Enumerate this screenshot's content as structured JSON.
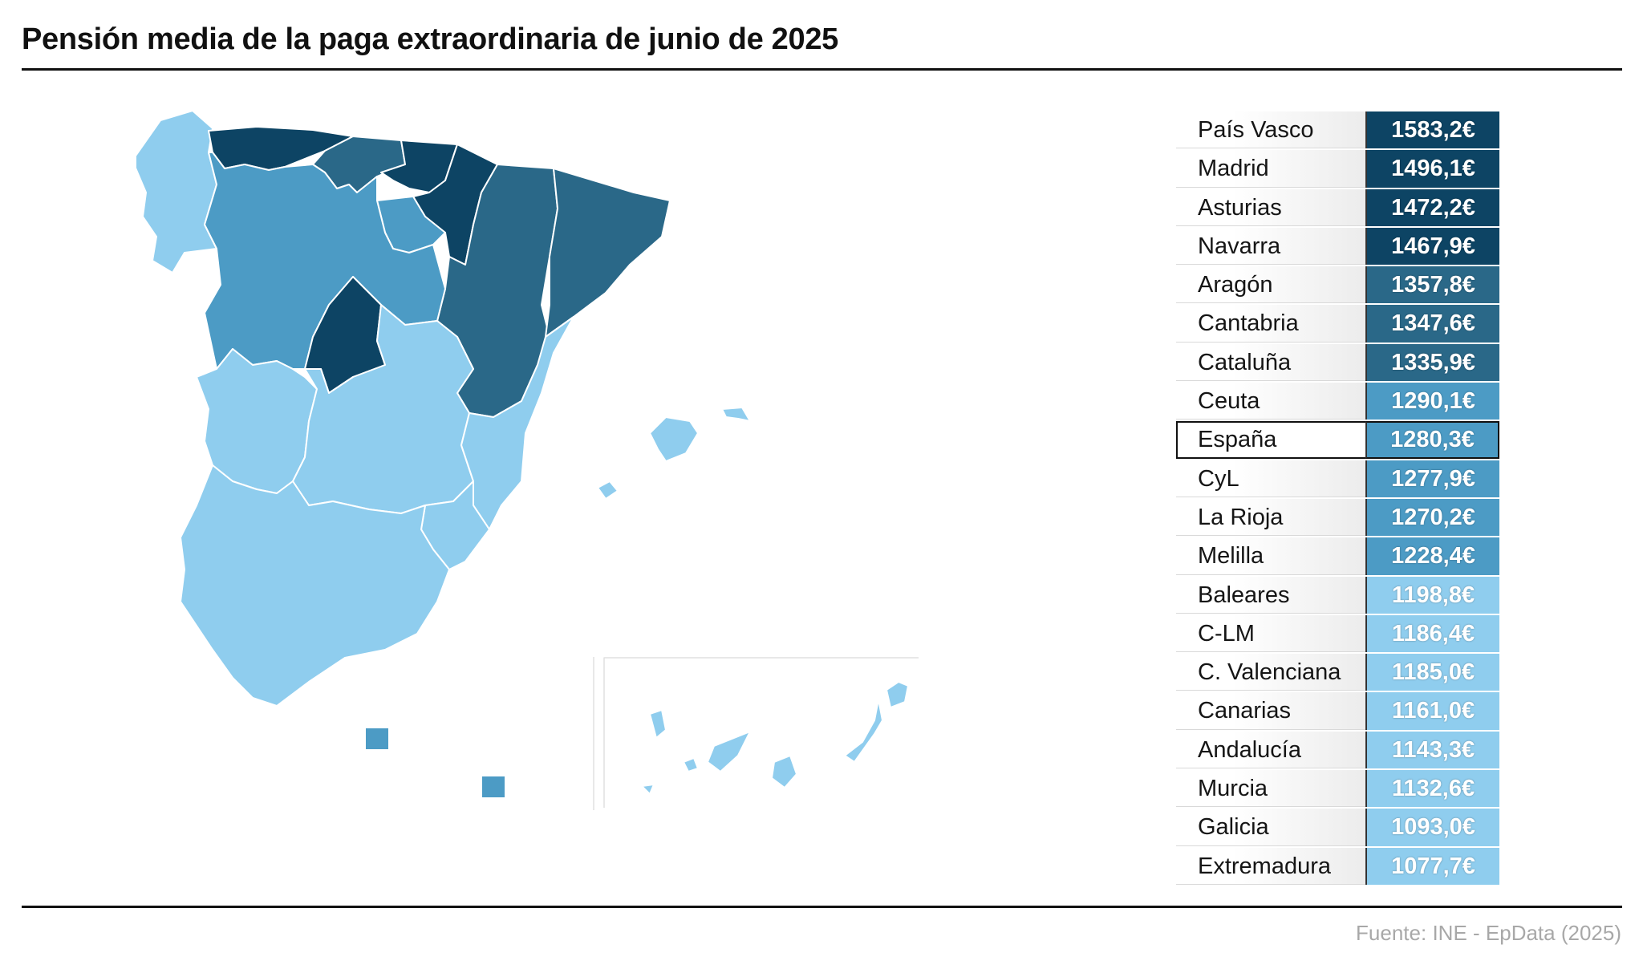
{
  "title": "Pensión media de la paga extraordinaria de junio de 2025",
  "source": "Fuente: INE - EpData (2025)",
  "colors": {
    "darkest": "#0d4464",
    "dark": "#2a6888",
    "medium": "#4c9bc5",
    "light": "#8fcdee"
  },
  "rows": [
    {
      "region": "País Vasco",
      "value": "1583,2€",
      "color": "#0d4464"
    },
    {
      "region": "Madrid",
      "value": "1496,1€",
      "color": "#0d4464"
    },
    {
      "region": "Asturias",
      "value": "1472,2€",
      "color": "#0d4464"
    },
    {
      "region": "Navarra",
      "value": "1467,9€",
      "color": "#0d4464"
    },
    {
      "region": "Aragón",
      "value": "1357,8€",
      "color": "#2a6888"
    },
    {
      "region": "Cantabria",
      "value": "1347,6€",
      "color": "#2a6888"
    },
    {
      "region": "Cataluña",
      "value": "1335,9€",
      "color": "#2a6888"
    },
    {
      "region": "Ceuta",
      "value": "1290,1€",
      "color": "#4c9bc5"
    },
    {
      "region": "España",
      "value": "1280,3€",
      "color": "#4c9bc5",
      "highlight": true
    },
    {
      "region": "CyL",
      "value": "1277,9€",
      "color": "#4c9bc5"
    },
    {
      "region": "La Rioja",
      "value": "1270,2€",
      "color": "#4c9bc5"
    },
    {
      "region": "Melilla",
      "value": "1228,4€",
      "color": "#4c9bc5"
    },
    {
      "region": "Baleares",
      "value": "1198,8€",
      "color": "#8fcdee"
    },
    {
      "region": "C-LM",
      "value": "1186,4€",
      "color": "#8fcdee"
    },
    {
      "region": "C. Valenciana",
      "value": "1185,0€",
      "color": "#8fcdee"
    },
    {
      "region": "Canarias",
      "value": "1161,0€",
      "color": "#8fcdee"
    },
    {
      "region": "Andalucía",
      "value": "1143,3€",
      "color": "#8fcdee"
    },
    {
      "region": "Murcia",
      "value": "1132,6€",
      "color": "#8fcdee"
    },
    {
      "region": "Galicia",
      "value": "1093,0€",
      "color": "#8fcdee"
    },
    {
      "region": "Extremadura",
      "value": "1077,7€",
      "color": "#8fcdee"
    }
  ]
}
